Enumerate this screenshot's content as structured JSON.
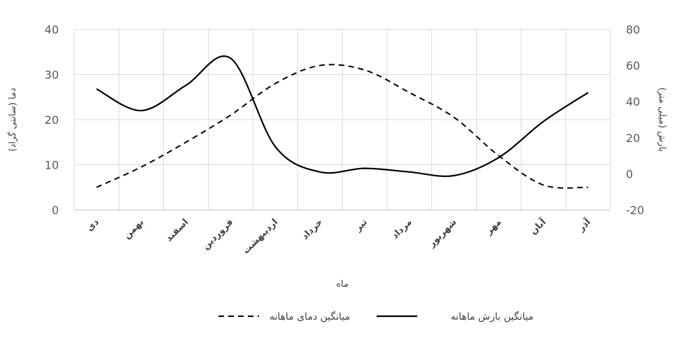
{
  "chart_data": {
    "type": "line",
    "xlabel": "ماه",
    "ylabel_left": "دما (سانتی گراد)",
    "ylabel_right": "بارش (میلی متر)",
    "categories": [
      "دی",
      "بهمن",
      "اسفند",
      "فروردین",
      "اردیبهشت",
      "خرداد",
      "تیر",
      "مرداد",
      "شهریور",
      "مهر",
      "آبان",
      "آذر"
    ],
    "y_left": {
      "min": 0,
      "max": 40,
      "ticks": [
        "0",
        "10",
        "20",
        "30",
        "40"
      ]
    },
    "y_right": {
      "min": -20,
      "max": 80,
      "ticks": [
        "-20",
        "0",
        "20",
        "40",
        "60",
        "80"
      ]
    },
    "grid": true,
    "legend_position": "bottom",
    "series": [
      {
        "name": "میانگین دمای ماهانه",
        "axis": "left",
        "style": "dashed",
        "color": "#000000",
        "values": [
          5,
          9.5,
          15,
          21,
          28,
          32,
          31,
          26,
          20.5,
          12,
          5.5,
          5
        ]
      },
      {
        "name": "میانگین بارش ماهانه",
        "axis": "right",
        "style": "solid",
        "color": "#000000",
        "values": [
          47,
          35,
          49,
          64,
          15,
          1,
          3,
          1,
          -1,
          9,
          29,
          45
        ]
      }
    ]
  }
}
